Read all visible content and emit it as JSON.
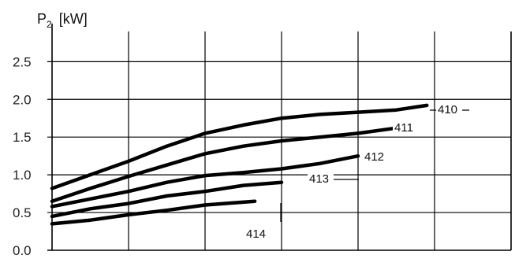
{
  "chart_data": {
    "type": "line",
    "ylabel": "P",
    "ylabel_sub": "2",
    "ylabel_unit": "[kW]",
    "ylim": [
      0,
      2.9
    ],
    "y_ticks": [
      0.0,
      0.5,
      1.0,
      1.5,
      2.0,
      2.5
    ],
    "y_tick_labels": [
      "0.0",
      "0.5",
      "1.0",
      "1.5",
      "2.0",
      "2.5"
    ],
    "x_ticks_labeled": false,
    "grid": true,
    "series": [
      {
        "name": "410",
        "points": [
          [
            0.0,
            0.82
          ],
          [
            0.5,
            1.0
          ],
          [
            1.0,
            1.18
          ],
          [
            1.5,
            1.38
          ],
          [
            2.0,
            1.55
          ],
          [
            2.5,
            1.66
          ],
          [
            3.0,
            1.75
          ],
          [
            3.5,
            1.8
          ],
          [
            4.0,
            1.83
          ],
          [
            4.5,
            1.86
          ],
          [
            4.9,
            1.92
          ]
        ]
      },
      {
        "name": "411",
        "points": [
          [
            0.0,
            0.65
          ],
          [
            0.5,
            0.82
          ],
          [
            1.0,
            0.98
          ],
          [
            1.5,
            1.13
          ],
          [
            2.0,
            1.28
          ],
          [
            2.5,
            1.38
          ],
          [
            3.0,
            1.45
          ],
          [
            3.5,
            1.5
          ],
          [
            4.0,
            1.55
          ],
          [
            4.5,
            1.62
          ]
        ]
      },
      {
        "name": "412",
        "points": [
          [
            0.0,
            0.58
          ],
          [
            0.5,
            0.68
          ],
          [
            1.0,
            0.78
          ],
          [
            1.5,
            0.9
          ],
          [
            2.0,
            0.99
          ],
          [
            2.5,
            1.03
          ],
          [
            3.0,
            1.08
          ],
          [
            3.5,
            1.15
          ],
          [
            4.0,
            1.25
          ]
        ]
      },
      {
        "name": "413",
        "points": [
          [
            0.0,
            0.45
          ],
          [
            0.5,
            0.55
          ],
          [
            1.0,
            0.62
          ],
          [
            1.5,
            0.72
          ],
          [
            2.0,
            0.78
          ],
          [
            2.5,
            0.86
          ],
          [
            3.0,
            0.9
          ]
        ]
      },
      {
        "name": "414",
        "points": [
          [
            0.0,
            0.35
          ],
          [
            0.5,
            0.4
          ],
          [
            1.0,
            0.47
          ],
          [
            1.5,
            0.53
          ],
          [
            2.0,
            0.6
          ],
          [
            2.65,
            0.65
          ]
        ]
      }
    ]
  }
}
